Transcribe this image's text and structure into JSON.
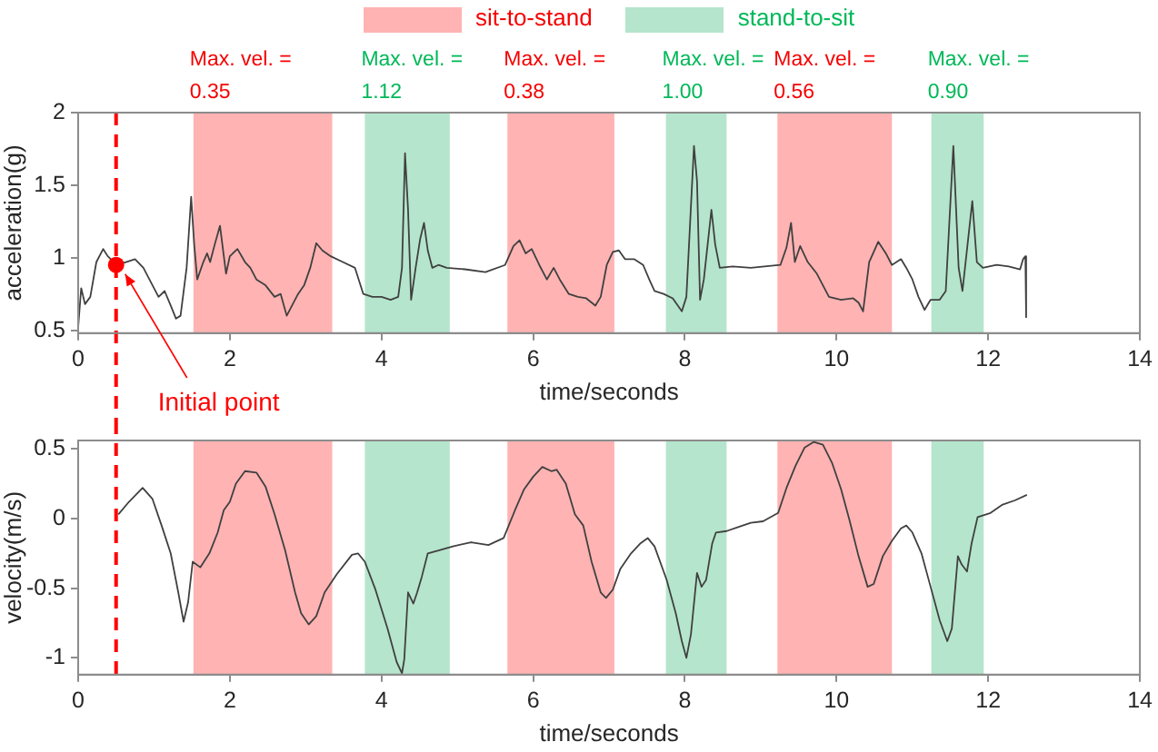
{
  "chart_data": [
    {
      "type": "line",
      "xlabel": "time/seconds",
      "ylabel": "acceleration(g)",
      "color": "#404040",
      "legend": "top",
      "x": [
        0,
        0.04,
        0.09,
        0.16,
        0.24,
        0.33,
        0.39,
        0.51,
        0.63,
        0.75,
        0.86,
        0.98,
        1.06,
        1.14,
        1.22,
        1.29,
        1.35,
        1.43,
        1.49,
        1.53,
        1.57,
        1.65,
        1.7,
        1.74,
        1.8,
        1.87,
        1.95,
        2.0,
        2.1,
        2.2,
        2.27,
        2.35,
        2.47,
        2.59,
        2.67,
        2.75,
        2.82,
        2.9,
        2.98,
        3.06,
        3.14,
        3.22,
        3.33,
        3.49,
        3.65,
        3.76,
        3.88,
        4.0,
        4.12,
        4.22,
        4.27,
        4.31,
        4.35,
        4.39,
        4.45,
        4.51,
        4.56,
        4.61,
        4.67,
        4.75,
        4.86,
        5.1,
        5.37,
        5.63,
        5.74,
        5.82,
        5.9,
        5.98,
        6.08,
        6.18,
        6.27,
        6.35,
        6.47,
        6.59,
        6.7,
        6.82,
        6.89,
        6.97,
        7.05,
        7.13,
        7.21,
        7.33,
        7.45,
        7.53,
        7.6,
        7.72,
        7.84,
        7.96,
        8.02,
        8.12,
        8.16,
        8.2,
        8.25,
        8.35,
        8.4,
        8.46,
        8.63,
        8.87,
        9.26,
        9.34,
        9.4,
        9.45,
        9.52,
        9.62,
        9.74,
        9.9,
        10.06,
        10.22,
        10.29,
        10.35,
        10.43,
        10.55,
        10.65,
        10.73,
        10.85,
        10.92,
        11.0,
        11.08,
        11.16,
        11.24,
        11.36,
        11.44,
        11.54,
        11.61,
        11.66,
        11.79,
        11.85,
        11.93,
        12.11,
        12.27,
        12.42,
        12.46,
        12.49,
        12.5
      ],
      "values": [
        0.52,
        0.79,
        0.68,
        0.73,
        0.97,
        1.06,
        1.01,
        0.95,
        0.97,
        0.99,
        0.93,
        0.81,
        0.73,
        0.77,
        0.67,
        0.58,
        0.6,
        0.93,
        1.42,
        1.09,
        0.85,
        0.97,
        1.03,
        0.97,
        1.09,
        1.22,
        0.89,
        1.01,
        1.06,
        0.97,
        0.93,
        0.85,
        0.81,
        0.73,
        0.75,
        0.6,
        0.67,
        0.75,
        0.81,
        0.93,
        1.1,
        1.05,
        1.01,
        0.97,
        0.93,
        0.75,
        0.73,
        0.73,
        0.71,
        0.73,
        0.93,
        1.72,
        1.33,
        0.71,
        0.93,
        1.13,
        1.24,
        1.05,
        0.93,
        0.95,
        0.93,
        0.92,
        0.9,
        0.95,
        1.08,
        1.12,
        1.03,
        1.06,
        0.95,
        0.85,
        0.93,
        0.85,
        0.75,
        0.73,
        0.72,
        0.67,
        0.73,
        0.95,
        1.04,
        1.05,
        0.99,
        0.99,
        0.95,
        0.85,
        0.77,
        0.75,
        0.72,
        0.63,
        0.73,
        1.77,
        1.53,
        0.71,
        0.85,
        1.33,
        1.09,
        0.93,
        0.94,
        0.93,
        0.95,
        1.07,
        1.24,
        0.97,
        1.08,
        0.97,
        0.89,
        0.73,
        0.71,
        0.72,
        0.69,
        0.63,
        0.97,
        1.11,
        1.03,
        0.95,
        0.99,
        0.93,
        0.85,
        0.73,
        0.64,
        0.71,
        0.71,
        0.77,
        1.77,
        0.93,
        0.77,
        1.39,
        0.97,
        0.93,
        0.95,
        0.94,
        0.92,
        0.99,
        1.01,
        0.59
      ],
      "xlim": [
        0,
        14
      ],
      "xticks": [
        0,
        2,
        4,
        6,
        8,
        10,
        12,
        14
      ],
      "ylim": [
        0.48,
        2
      ],
      "yticks": [
        0.5,
        1,
        1.5,
        2
      ],
      "bands": [
        {
          "axis": "x",
          "from": 1.52,
          "to": 3.35,
          "label": "sit-to-stand",
          "color": "#ffb3b3"
        },
        {
          "axis": "x",
          "from": 3.78,
          "to": 4.9,
          "label": "stand-to-sit",
          "color": "#b5e5cc"
        },
        {
          "axis": "x",
          "from": 5.66,
          "to": 7.07,
          "color": "#ffb3b3"
        },
        {
          "axis": "x",
          "from": 7.75,
          "to": 8.55,
          "color": "#b5e5cc"
        },
        {
          "axis": "x",
          "from": 9.22,
          "to": 10.73,
          "color": "#ffb3b3"
        },
        {
          "axis": "x",
          "from": 11.25,
          "to": 11.94,
          "color": "#b5e5cc"
        }
      ],
      "ref_lines": [
        {
          "axis": "x",
          "value": 0.5,
          "color": "#ff0000",
          "line_style": "dashed"
        }
      ],
      "annotations": [
        "Max. vel. =\n0.35",
        "Max. vel. =\n1.12",
        "Max. vel. =\n0.38",
        "Max. vel. =\n1.00",
        "Max. vel. =\n0.56",
        "Max. vel. =\n0.90",
        {
          "text": "Initial point",
          "x": 0.5,
          "y": 0.95
        }
      ]
    },
    {
      "type": "line",
      "xlabel": "time/seconds",
      "ylabel": "velocity(m/s)",
      "color": "#404040",
      "x": [
        0.53,
        0.67,
        0.85,
        0.98,
        1.1,
        1.22,
        1.32,
        1.39,
        1.45,
        1.51,
        1.61,
        1.73,
        1.84,
        1.92,
        2.0,
        2.08,
        2.2,
        2.35,
        2.47,
        2.59,
        2.73,
        2.86,
        2.94,
        3.04,
        3.14,
        3.25,
        3.41,
        3.61,
        3.69,
        3.78,
        3.92,
        4.08,
        4.2,
        4.27,
        4.3,
        4.35,
        4.42,
        4.47,
        4.53,
        4.61,
        4.75,
        4.94,
        5.18,
        5.41,
        5.61,
        5.76,
        5.88,
        6.0,
        6.12,
        6.24,
        6.31,
        6.43,
        6.55,
        6.66,
        6.77,
        6.89,
        6.96,
        7.05,
        7.15,
        7.29,
        7.41,
        7.51,
        7.6,
        7.76,
        7.88,
        7.96,
        8.02,
        8.08,
        8.16,
        8.22,
        8.28,
        8.36,
        8.41,
        8.55,
        8.71,
        8.87,
        9.03,
        9.23,
        9.34,
        9.46,
        9.58,
        9.7,
        9.82,
        9.94,
        10.06,
        10.17,
        10.29,
        10.41,
        10.49,
        10.61,
        10.73,
        10.85,
        10.92,
        11.0,
        11.12,
        11.24,
        11.36,
        11.46,
        11.52,
        11.6,
        11.65,
        11.72,
        11.78,
        11.86,
        12.03,
        12.19,
        12.35,
        12.51
      ],
      "values": [
        0.03,
        0.12,
        0.22,
        0.14,
        -0.05,
        -0.25,
        -0.53,
        -0.74,
        -0.6,
        -0.31,
        -0.35,
        -0.25,
        -0.1,
        0.06,
        0.12,
        0.25,
        0.34,
        0.33,
        0.23,
        0.03,
        -0.23,
        -0.53,
        -0.68,
        -0.76,
        -0.7,
        -0.53,
        -0.4,
        -0.26,
        -0.25,
        -0.31,
        -0.51,
        -0.79,
        -1.03,
        -1.11,
        -1.01,
        -0.53,
        -0.61,
        -0.53,
        -0.42,
        -0.25,
        -0.23,
        -0.2,
        -0.17,
        -0.19,
        -0.14,
        0.06,
        0.21,
        0.3,
        0.37,
        0.34,
        0.35,
        0.25,
        0.03,
        -0.05,
        -0.31,
        -0.53,
        -0.57,
        -0.51,
        -0.36,
        -0.25,
        -0.18,
        -0.14,
        -0.2,
        -0.44,
        -0.68,
        -0.88,
        -1.0,
        -0.83,
        -0.39,
        -0.49,
        -0.44,
        -0.18,
        -0.1,
        -0.09,
        -0.06,
        -0.03,
        -0.02,
        0.04,
        0.22,
        0.38,
        0.51,
        0.55,
        0.53,
        0.4,
        0.21,
        -0.01,
        -0.27,
        -0.49,
        -0.47,
        -0.27,
        -0.16,
        -0.07,
        -0.05,
        -0.1,
        -0.25,
        -0.49,
        -0.73,
        -0.88,
        -0.79,
        -0.27,
        -0.33,
        -0.38,
        -0.18,
        0.01,
        0.04,
        0.1,
        0.13,
        0.17
      ],
      "xlim": [
        0,
        14
      ],
      "xticks": [
        0,
        2,
        4,
        6,
        8,
        10,
        12,
        14
      ],
      "ylim": [
        -1.12,
        0.56
      ],
      "yticks": [
        -1,
        -0.5,
        0,
        0.5
      ],
      "bands": [
        {
          "axis": "x",
          "from": 1.52,
          "to": 3.35,
          "color": "#ffb3b3"
        },
        {
          "axis": "x",
          "from": 3.78,
          "to": 4.9,
          "color": "#b5e5cc"
        },
        {
          "axis": "x",
          "from": 5.66,
          "to": 7.07,
          "color": "#ffb3b3"
        },
        {
          "axis": "x",
          "from": 7.75,
          "to": 8.55,
          "color": "#b5e5cc"
        },
        {
          "axis": "x",
          "from": 9.22,
          "to": 10.73,
          "color": "#ffb3b3"
        },
        {
          "axis": "x",
          "from": 11.25,
          "to": 11.94,
          "color": "#b5e5cc"
        }
      ],
      "ref_lines": [
        {
          "axis": "x",
          "value": 0.5,
          "color": "#ff0000",
          "line_style": "dashed"
        }
      ]
    }
  ]
}
